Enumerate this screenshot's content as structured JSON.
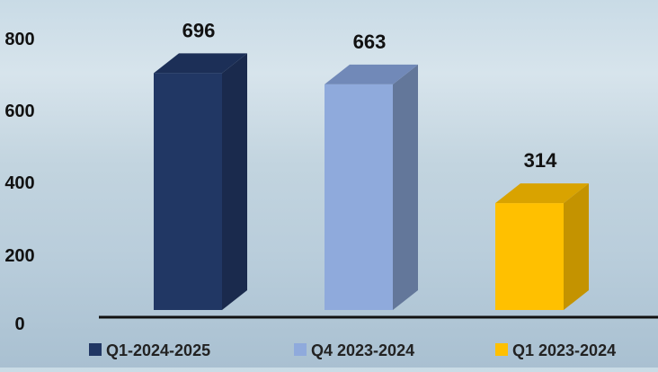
{
  "chart_data": {
    "type": "bar",
    "style": "3d-column",
    "categories": [
      "Q1-2024-2025",
      "Q4 2023-2024",
      "Q1 2023-2024"
    ],
    "values": [
      696,
      663,
      314
    ],
    "data_labels": [
      "696",
      "663",
      "314"
    ],
    "colors": [
      "#213764",
      "#8faadc",
      "#ffc000"
    ],
    "side_colors": [
      "#1a2a4d",
      "#63779a",
      "#c49300"
    ],
    "top_colors": [
      "#1c2f57",
      "#7189b8",
      "#d9a300"
    ],
    "y_ticks": [
      "0",
      "200",
      "400",
      "600",
      "800"
    ],
    "ylim": [
      0,
      800
    ],
    "grid": false,
    "legend": {
      "position": "bottom",
      "items": [
        "Q1-2024-2025",
        "Q4 2023-2024",
        "Q1 2023-2024"
      ]
    }
  }
}
